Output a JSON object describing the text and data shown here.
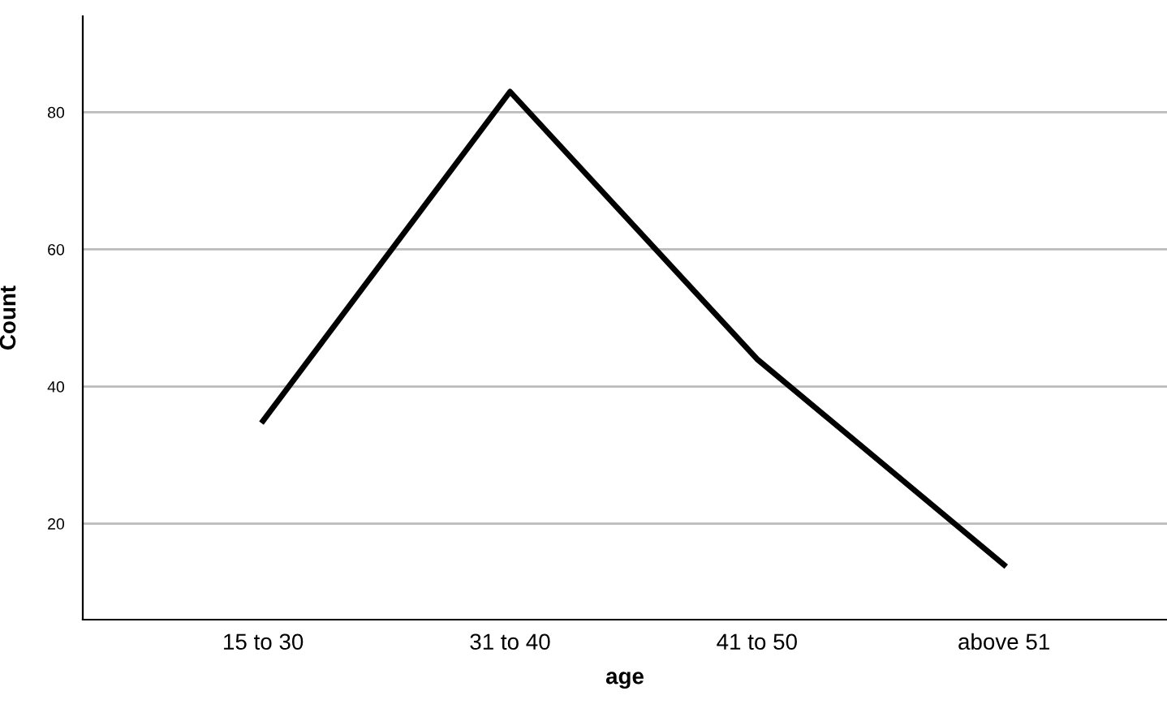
{
  "chart_data": {
    "type": "line",
    "xlabel": "age",
    "ylabel": "Count",
    "categories": [
      "15 to 30",
      "31 to 40",
      "41 to 50",
      "above 51"
    ],
    "series": [
      {
        "color": "#000000",
        "values": [
          35,
          83,
          44,
          14
        ]
      }
    ],
    "ylim": [
      6,
      94
    ],
    "yticks": [
      20,
      40,
      60,
      80
    ],
    "grid": "y",
    "legend": false,
    "marker": "none",
    "line_style": "solid"
  }
}
